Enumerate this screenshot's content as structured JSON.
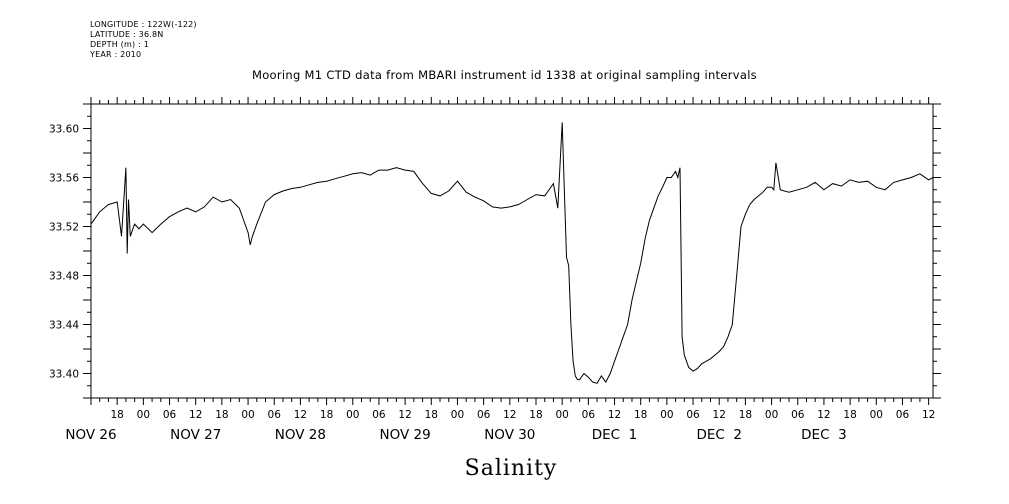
{
  "header": {
    "longitude": "LONGITUDE : 122W(-122)",
    "latitude": "LATITUDE : 36.8N",
    "depth": "DEPTH (m) : 1",
    "year": "YEAR : 2010"
  },
  "chart_data": {
    "type": "line",
    "title": "Mooring M1 CTD data from MBARI instrument id 1338 at original sampling intervals",
    "xlabel": "Salinity",
    "ylabel": "",
    "xlim_hours": [
      12,
      205
    ],
    "ylim": [
      33.38,
      33.62
    ],
    "y_tick_labels": [
      "33.40",
      "33.44",
      "33.48",
      "33.52",
      "33.56",
      "33.60"
    ],
    "x_hour_ticks": [
      {
        "h": 18,
        "label": "18"
      },
      {
        "h": 24,
        "label": "00"
      },
      {
        "h": 30,
        "label": "06"
      },
      {
        "h": 36,
        "label": "12"
      },
      {
        "h": 42,
        "label": "18"
      },
      {
        "h": 48,
        "label": "00"
      },
      {
        "h": 54,
        "label": "06"
      },
      {
        "h": 60,
        "label": "12"
      },
      {
        "h": 66,
        "label": "18"
      },
      {
        "h": 72,
        "label": "00"
      },
      {
        "h": 78,
        "label": "06"
      },
      {
        "h": 84,
        "label": "12"
      },
      {
        "h": 90,
        "label": "18"
      },
      {
        "h": 96,
        "label": "00"
      },
      {
        "h": 102,
        "label": "06"
      },
      {
        "h": 108,
        "label": "12"
      },
      {
        "h": 114,
        "label": "18"
      },
      {
        "h": 120,
        "label": "00"
      },
      {
        "h": 126,
        "label": "06"
      },
      {
        "h": 132,
        "label": "12"
      },
      {
        "h": 138,
        "label": "18"
      },
      {
        "h": 144,
        "label": "00"
      },
      {
        "h": 150,
        "label": "06"
      },
      {
        "h": 156,
        "label": "12"
      },
      {
        "h": 162,
        "label": "18"
      },
      {
        "h": 168,
        "label": "00"
      },
      {
        "h": 174,
        "label": "06"
      },
      {
        "h": 180,
        "label": "12"
      },
      {
        "h": 186,
        "label": "18"
      },
      {
        "h": 192,
        "label": "00"
      },
      {
        "h": 198,
        "label": "06"
      },
      {
        "h": 204,
        "label": "12"
      }
    ],
    "x_day_labels": [
      {
        "h": 12,
        "label": "NOV 26"
      },
      {
        "h": 36,
        "label": "NOV 27"
      },
      {
        "h": 60,
        "label": "NOV 28"
      },
      {
        "h": 84,
        "label": "NOV 29"
      },
      {
        "h": 108,
        "label": "NOV 30"
      },
      {
        "h": 132,
        "label": "DEC  1"
      },
      {
        "h": 156,
        "label": "DEC  2"
      },
      {
        "h": 180,
        "label": "DEC  3"
      }
    ],
    "series": [
      {
        "color": "#000000",
        "x": [
          12,
          14,
          16,
          18,
          19,
          20,
          20.3,
          20.6,
          21,
          22,
          23,
          24,
          26,
          28,
          30,
          32,
          34,
          36,
          38,
          40,
          42,
          44,
          46,
          48,
          48.5,
          49,
          50,
          52,
          54,
          56,
          58,
          60,
          62,
          64,
          66,
          68,
          70,
          72,
          74,
          76,
          78,
          80,
          82,
          84,
          86,
          88,
          90,
          92,
          94,
          96,
          98,
          100,
          102,
          104,
          106,
          108,
          110,
          112,
          114,
          116,
          118,
          119,
          120,
          120.5,
          121,
          121.5,
          122,
          122.5,
          123,
          123.5,
          124,
          125,
          126,
          127,
          128,
          129,
          130,
          131,
          132,
          133,
          134,
          135,
          136,
          137,
          138,
          139,
          140,
          141,
          142,
          143,
          144,
          145,
          146,
          146.5,
          147,
          147.5,
          148,
          149,
          150,
          151,
          152,
          153,
          154,
          155,
          156,
          157,
          158,
          159,
          160,
          161,
          162,
          163,
          164,
          165,
          166,
          167,
          168,
          168.5,
          169,
          170,
          172,
          174,
          176,
          178,
          180,
          182,
          184,
          186,
          188,
          190,
          192,
          194,
          196,
          198,
          200,
          202,
          204,
          205
        ],
        "y": [
          33.522,
          33.532,
          33.538,
          33.54,
          33.512,
          33.568,
          33.498,
          33.542,
          33.512,
          33.522,
          33.518,
          33.522,
          33.515,
          33.522,
          33.528,
          33.532,
          33.535,
          33.532,
          33.536,
          33.544,
          33.54,
          33.542,
          33.535,
          33.515,
          33.505,
          33.512,
          33.522,
          33.54,
          33.546,
          33.549,
          33.551,
          33.552,
          33.554,
          33.556,
          33.557,
          33.559,
          33.561,
          33.563,
          33.564,
          33.562,
          33.566,
          33.566,
          33.568,
          33.566,
          33.565,
          33.555,
          33.547,
          33.545,
          33.549,
          33.557,
          33.548,
          33.544,
          33.541,
          33.536,
          33.535,
          33.536,
          33.538,
          33.542,
          33.546,
          33.545,
          33.555,
          33.535,
          33.605,
          33.548,
          33.495,
          33.488,
          33.44,
          33.41,
          33.398,
          33.395,
          33.395,
          33.4,
          33.397,
          33.393,
          33.392,
          33.398,
          33.393,
          33.4,
          33.41,
          33.42,
          33.43,
          33.44,
          33.46,
          33.475,
          33.49,
          33.51,
          33.525,
          33.535,
          33.545,
          33.552,
          33.56,
          33.56,
          33.565,
          33.56,
          33.568,
          33.43,
          33.415,
          33.405,
          33.402,
          33.404,
          33.408,
          33.41,
          33.412,
          33.415,
          33.418,
          33.422,
          33.43,
          33.44,
          33.48,
          33.52,
          33.53,
          33.538,
          33.542,
          33.545,
          33.548,
          33.552,
          33.552,
          33.55,
          33.572,
          33.55,
          33.548,
          33.55,
          33.552,
          33.556,
          33.55,
          33.555,
          33.553,
          33.558,
          33.556,
          33.557,
          33.552,
          33.55,
          33.556,
          33.558,
          33.56,
          33.563,
          33.558,
          33.56
        ]
      }
    ]
  }
}
